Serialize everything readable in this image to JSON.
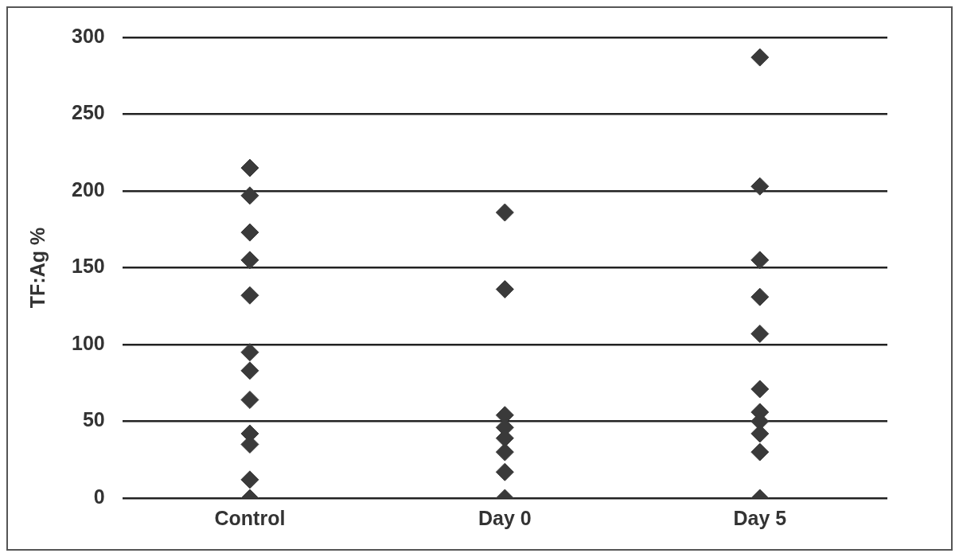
{
  "chart_data": {
    "type": "scatter",
    "ylabel": "TF:Ag %",
    "categories": [
      "Control",
      "Day 0",
      "Day 5"
    ],
    "series": [
      {
        "color": "#3a3a3a",
        "x": [
          "Control",
          "Control",
          "Control",
          "Control",
          "Control",
          "Control",
          "Control",
          "Control",
          "Control",
          "Control",
          "Control",
          "Control",
          "Day 0",
          "Day 0",
          "Day 0",
          "Day 0",
          "Day 0",
          "Day 0",
          "Day 0",
          "Day 0",
          "Day 5",
          "Day 5",
          "Day 5",
          "Day 5",
          "Day 5",
          "Day 5",
          "Day 5",
          "Day 5",
          "Day 5",
          "Day 5",
          "Day 5"
        ],
        "values": [
          215,
          197,
          173,
          155,
          132,
          95,
          83,
          64,
          42,
          35,
          12,
          0,
          186,
          136,
          54,
          46,
          39,
          30,
          17,
          0,
          287,
          203,
          155,
          131,
          107,
          71,
          56,
          50,
          42,
          30,
          0
        ]
      }
    ],
    "ylim": [
      0,
      300
    ],
    "yticks": [
      0,
      50,
      100,
      150,
      200,
      250,
      300
    ],
    "grid": "y",
    "legend": false,
    "marker": "diamond"
  }
}
